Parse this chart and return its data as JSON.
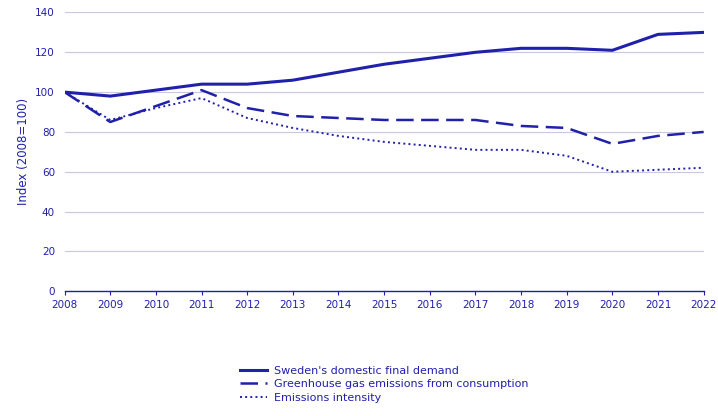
{
  "years": [
    2008,
    2009,
    2010,
    2011,
    2012,
    2013,
    2014,
    2015,
    2016,
    2017,
    2018,
    2019,
    2020,
    2021,
    2022
  ],
  "domestic_final_demand": [
    100,
    98,
    101,
    104,
    104,
    106,
    110,
    114,
    117,
    120,
    122,
    122,
    121,
    129,
    130
  ],
  "ghg_emissions": [
    100,
    85,
    93,
    101,
    92,
    88,
    87,
    86,
    86,
    86,
    83,
    82,
    74,
    78,
    80
  ],
  "emissions_intensity": [
    100,
    86,
    92,
    97,
    87,
    82,
    78,
    75,
    73,
    71,
    71,
    68,
    60,
    61,
    62
  ],
  "line_color": "#2020aa",
  "ylim": [
    0,
    140
  ],
  "yticks": [
    0,
    20,
    40,
    60,
    80,
    100,
    120,
    140
  ],
  "ylabel": "Index (2008=100)",
  "legend_labels": [
    "Sweden's domestic final demand",
    "Greenhouse gas emissions from consumption",
    "Emissions intensity"
  ],
  "grid_color": "#c8c8e0",
  "background_color": "#ffffff",
  "font_color": "#2020aa",
  "tick_fontsize": 7.5,
  "ylabel_fontsize": 8.5,
  "legend_fontsize": 8.0,
  "figsize": [
    7.18,
    4.16
  ],
  "dpi": 100
}
